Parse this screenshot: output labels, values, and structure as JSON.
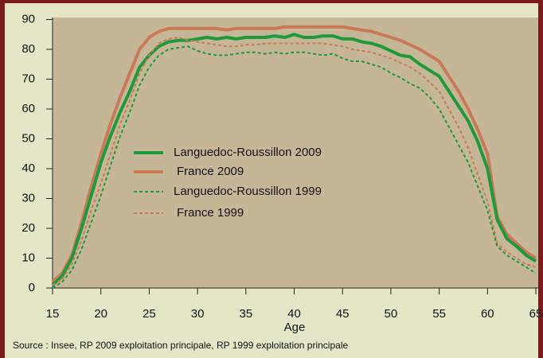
{
  "chart_data": {
    "type": "line",
    "x_label": "Age",
    "source": "Source : Insee, RP 2009 exploitation principale, RP 1999 exploitation principale",
    "x": [
      15,
      16,
      17,
      18,
      19,
      20,
      21,
      22,
      23,
      24,
      25,
      26,
      27,
      28,
      29,
      30,
      31,
      32,
      33,
      34,
      35,
      36,
      37,
      38,
      39,
      40,
      41,
      42,
      43,
      44,
      45,
      46,
      47,
      48,
      49,
      50,
      51,
      52,
      53,
      54,
      55,
      56,
      57,
      58,
      59,
      60,
      61,
      62,
      63,
      64,
      65
    ],
    "xlim": [
      15,
      65
    ],
    "xticks": [
      15,
      20,
      25,
      30,
      35,
      40,
      45,
      50,
      55,
      60,
      65
    ],
    "ylim": [
      0,
      90
    ],
    "yticks": [
      0,
      10,
      20,
      30,
      40,
      50,
      60,
      70,
      80,
      90
    ],
    "series": [
      {
        "name": "Languedoc-Roussillon 2009",
        "color": "#1e9a3c",
        "style": "solid",
        "values": [
          1,
          4,
          10,
          20,
          31,
          42,
          51,
          59,
          66,
          74,
          78,
          81,
          82.5,
          83,
          83,
          83.5,
          84,
          83.5,
          84,
          83.5,
          84,
          84,
          84,
          84.5,
          84,
          85,
          84,
          84,
          84.5,
          84.5,
          83.5,
          83.5,
          82.5,
          82,
          81,
          79.5,
          78,
          77.5,
          75,
          73,
          71,
          66,
          61,
          56,
          49,
          40,
          23,
          16.5,
          14,
          11,
          9
        ]
      },
      {
        "name": "France 2009",
        "color": "#c87a58",
        "style": "solid",
        "values": [
          2,
          5,
          11,
          22,
          34,
          45,
          55,
          64,
          72,
          80,
          84,
          86,
          87,
          87,
          87,
          87,
          87,
          87,
          86.5,
          87,
          87,
          87,
          87,
          87,
          87.5,
          87.5,
          87.5,
          87.5,
          87.5,
          87.5,
          87.5,
          87,
          86.5,
          86,
          85,
          84,
          83,
          81.5,
          80,
          78,
          76,
          71,
          66,
          60,
          53,
          45,
          24,
          18,
          15,
          12,
          10
        ]
      },
      {
        "name": "Languedoc-Roussillon 1999",
        "color": "#1e9a3c",
        "style": "dashed",
        "values": [
          0,
          2,
          6,
          13,
          22,
          31,
          41,
          51,
          59,
          68,
          74,
          78,
          80,
          80.5,
          81,
          79.5,
          78.5,
          78,
          78,
          78.5,
          79,
          79,
          78.5,
          79,
          78.5,
          79,
          79,
          78.5,
          78,
          78.5,
          77,
          76,
          76,
          75,
          74,
          72,
          70.5,
          68.5,
          67,
          64,
          60,
          54,
          48,
          42,
          34,
          26,
          14,
          11,
          9,
          7,
          5
        ]
      },
      {
        "name": "France 1999",
        "color": "#c87a58",
        "style": "dashed",
        "values": [
          1,
          3,
          8,
          16,
          26,
          35,
          45,
          55,
          63,
          72,
          78,
          82,
          83.5,
          84,
          83,
          82.5,
          82,
          81.5,
          81,
          81,
          81.5,
          81.5,
          82,
          82,
          82,
          82,
          82,
          82,
          82,
          81.5,
          81,
          80,
          79.5,
          79,
          78,
          77,
          75.5,
          74,
          72,
          69,
          66,
          60,
          54,
          47,
          38,
          29,
          15,
          12,
          10,
          8,
          7
        ]
      }
    ]
  }
}
